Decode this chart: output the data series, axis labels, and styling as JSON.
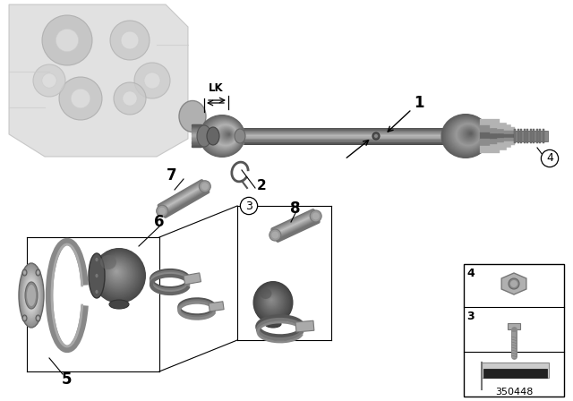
{
  "background_color": "#ffffff",
  "part_number": "350448",
  "figsize": [
    6.4,
    4.48
  ],
  "dpi": 100,
  "shaft_color_main": "#888888",
  "shaft_color_dark": "#555555",
  "shaft_color_light": "#aaaaaa",
  "boot_color_dark": "#333333",
  "boot_color_mid": "#555555",
  "flange_color": "#aaaaaa",
  "clamp_color": "#777777",
  "grease_color": "#999999",
  "gearbox_color_light": "#cccccc",
  "gearbox_color_mid": "#aaaaaa"
}
